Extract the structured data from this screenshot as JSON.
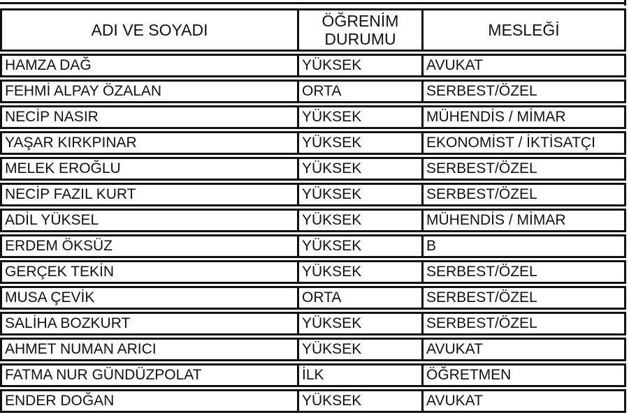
{
  "table": {
    "headers": [
      "ADI VE SOYADI",
      "ÖĞRENİM DURUMU",
      "MESLEĞİ"
    ],
    "header_lines": {
      "col2_line1": "ÖĞRENİM",
      "col2_line2": "DURUMU"
    },
    "rows": [
      [
        "HAMZA DAĞ",
        "YÜKSEK",
        "AVUKAT"
      ],
      [
        "FEHMİ ALPAY ÖZALAN",
        "ORTA",
        "SERBEST/ÖZEL"
      ],
      [
        "NECİP NASIR",
        "YÜKSEK",
        "MÜHENDİS / MİMAR"
      ],
      [
        "YAŞAR KIRKPINAR",
        "YÜKSEK",
        "EKONOMİST / İKTİSATÇI"
      ],
      [
        "MELEK EROĞLU",
        "YÜKSEK",
        "SERBEST/ÖZEL"
      ],
      [
        "NECİP FAZIL KURT",
        "YÜKSEK",
        "SERBEST/ÖZEL"
      ],
      [
        "ADİL YÜKSEL",
        "YÜKSEK",
        "MÜHENDİS / MİMAR"
      ],
      [
        "ERDEM ÖKSÜZ",
        "YÜKSEK",
        "B"
      ],
      [
        "GERÇEK TEKİN",
        "YÜKSEK",
        "SERBEST/ÖZEL"
      ],
      [
        "MUSA ÇEVİK",
        "ORTA",
        "SERBEST/ÖZEL"
      ],
      [
        "SALİHA BOZKURT",
        "YÜKSEK",
        "SERBEST/ÖZEL"
      ],
      [
        "AHMET NUMAN ARICI",
        "YÜKSEK",
        "AVUKAT"
      ],
      [
        "FATMA NUR GÜNDÜZPOLAT",
        "İLK",
        "ÖĞRETMEN"
      ],
      [
        "ENDER DOĞAN",
        "YÜKSEK",
        "AVUKAT"
      ]
    ]
  }
}
